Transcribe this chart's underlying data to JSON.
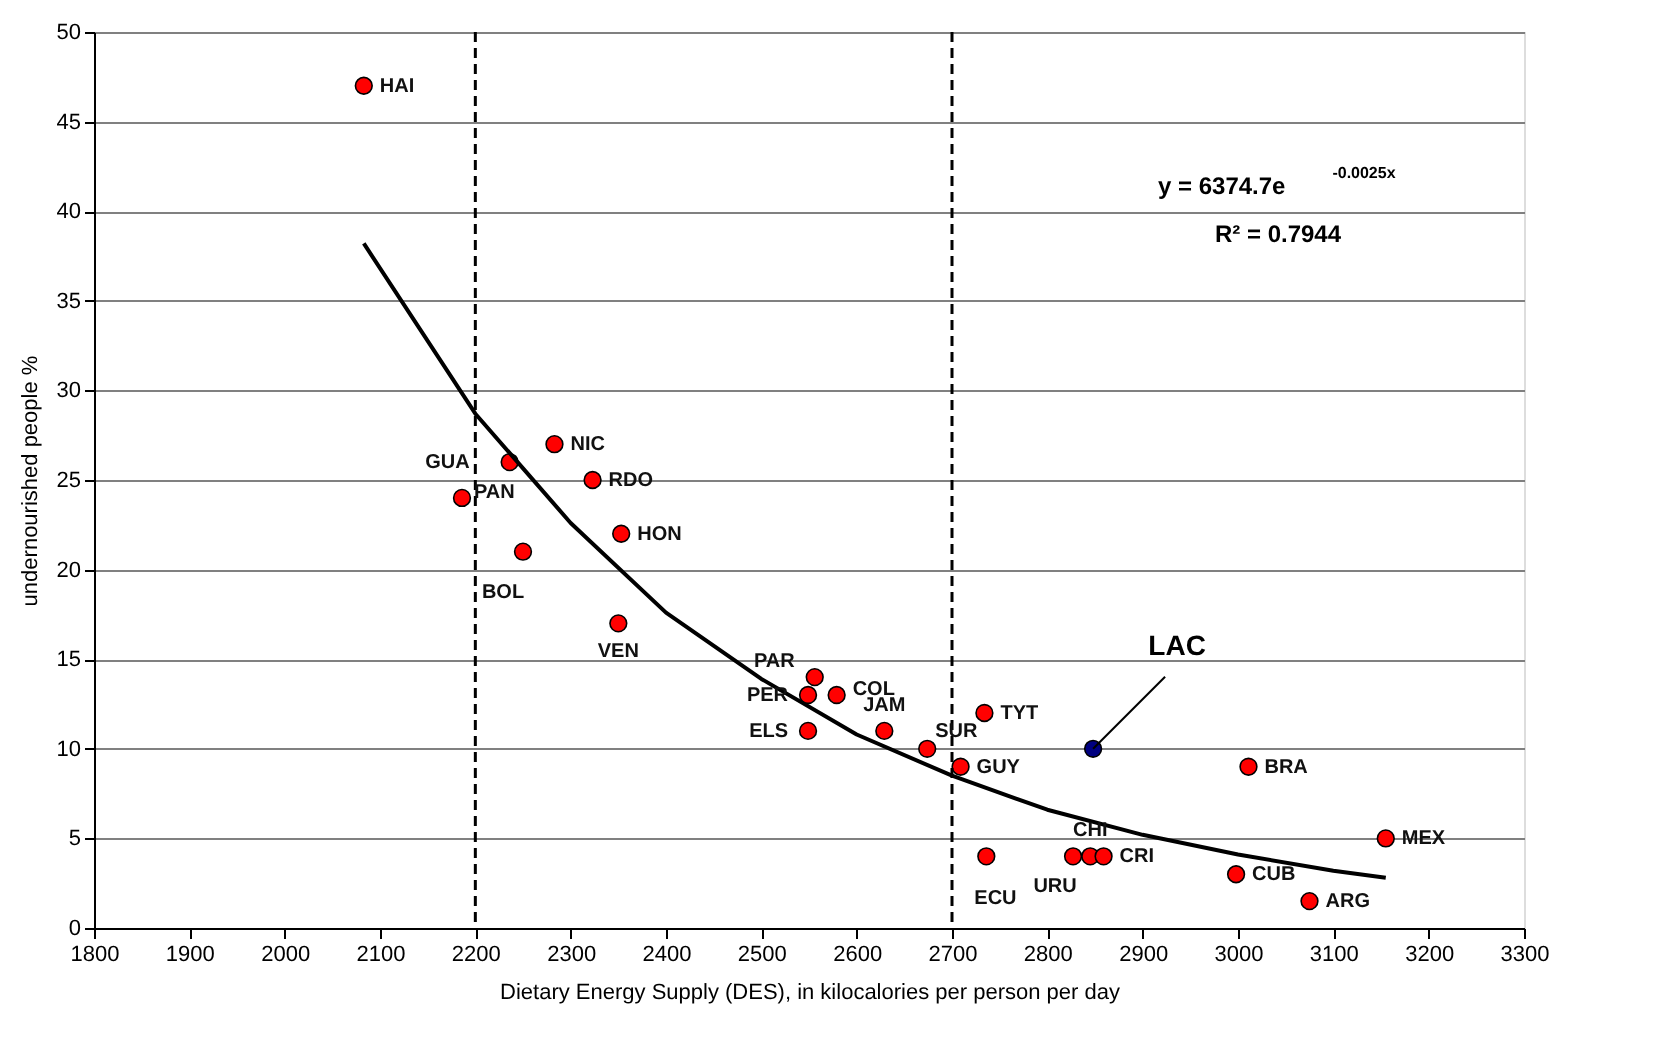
{
  "chart_data": {
    "type": "scatter",
    "xlabel": "Dietary Energy Supply (DES), in kilocalories per person per day",
    "ylabel": "undernourished people %",
    "xlim": [
      1800,
      3300
    ],
    "xticks": [
      1800,
      1900,
      2000,
      2100,
      2200,
      2300,
      2400,
      2500,
      2600,
      2700,
      2800,
      2900,
      3000,
      3100,
      3200,
      3300
    ],
    "ylim": [
      0,
      50
    ],
    "yticks": [
      0,
      5,
      10,
      15,
      20,
      25,
      30,
      35,
      40,
      45,
      50
    ],
    "grid": "y",
    "series": [
      {
        "marker": "circle",
        "color": "#ff0000",
        "x": [
          2083,
          2236,
          2186,
          2283,
          2323,
          2353,
          2250,
          2350,
          2556,
          2549,
          2579,
          2549,
          2629,
          2674,
          2709,
          2734,
          2736,
          2827,
          2845,
          2859,
          3011,
          2998,
          3155,
          3075
        ],
        "values": [
          47,
          26,
          24,
          27,
          25,
          22,
          21,
          17,
          14,
          13,
          13,
          11,
          11,
          10,
          9,
          12,
          4,
          4,
          4,
          4,
          9,
          3,
          5,
          1.5
        ]
      },
      {
        "marker": "circle",
        "color": "#000080",
        "x": [
          2848
        ],
        "values": [
          10
        ]
      },
      {
        "type": "line",
        "color": "#000000",
        "line_style": "solid",
        "x": [
          2083,
          2200,
          2300,
          2400,
          2500,
          2600,
          2700,
          2800,
          2900,
          3000,
          3100,
          3155
        ],
        "values": [
          38.2,
          28.7,
          22.6,
          17.6,
          13.9,
          10.8,
          8.5,
          6.6,
          5.2,
          4.1,
          3.2,
          2.8
        ]
      }
    ],
    "ref_lines": [
      {
        "axis": "x",
        "value": 2200,
        "color": "#000000",
        "line_style": "dashed"
      },
      {
        "axis": "x",
        "value": 2700,
        "color": "#000000",
        "line_style": "dashed"
      }
    ],
    "annotations": [
      {
        "text": "HAI",
        "x": 2083,
        "y": 47
      },
      {
        "text": "GUA",
        "x": 2236,
        "y": 26
      },
      {
        "text": "PAN",
        "x": 2186,
        "y": 24
      },
      {
        "text": "NIC",
        "x": 2283,
        "y": 27
      },
      {
        "text": "RDO",
        "x": 2323,
        "y": 25
      },
      {
        "text": "HON",
        "x": 2353,
        "y": 22
      },
      {
        "text": "BOL",
        "x": 2250,
        "y": 21
      },
      {
        "text": "VEN",
        "x": 2350,
        "y": 17
      },
      {
        "text": "PAR",
        "x": 2556,
        "y": 14
      },
      {
        "text": "PER",
        "x": 2549,
        "y": 13
      },
      {
        "text": "COL",
        "x": 2579,
        "y": 13
      },
      {
        "text": "ELS",
        "x": 2549,
        "y": 11
      },
      {
        "text": "JAM",
        "x": 2629,
        "y": 11
      },
      {
        "text": "SUR",
        "x": 2674,
        "y": 10
      },
      {
        "text": "GUY",
        "x": 2709,
        "y": 9
      },
      {
        "text": "TYT",
        "x": 2734,
        "y": 12
      },
      {
        "text": "ECU",
        "x": 2736,
        "y": 4
      },
      {
        "text": "URU",
        "x": 2827,
        "y": 4
      },
      {
        "text": "CHI",
        "x": 2845,
        "y": 4
      },
      {
        "text": "CRI",
        "x": 2859,
        "y": 4
      },
      {
        "text": "BRA",
        "x": 3011,
        "y": 9
      },
      {
        "text": "CUB",
        "x": 2998,
        "y": 3
      },
      {
        "text": "MEX",
        "x": 3155,
        "y": 5
      },
      {
        "text": "ARG",
        "x": 3075,
        "y": 1.5
      },
      {
        "text": "LAC",
        "x": 2848,
        "y": 10
      },
      "y = 6374.7e$^{-0.0025x}$",
      "R² = 0.7944"
    ]
  }
}
